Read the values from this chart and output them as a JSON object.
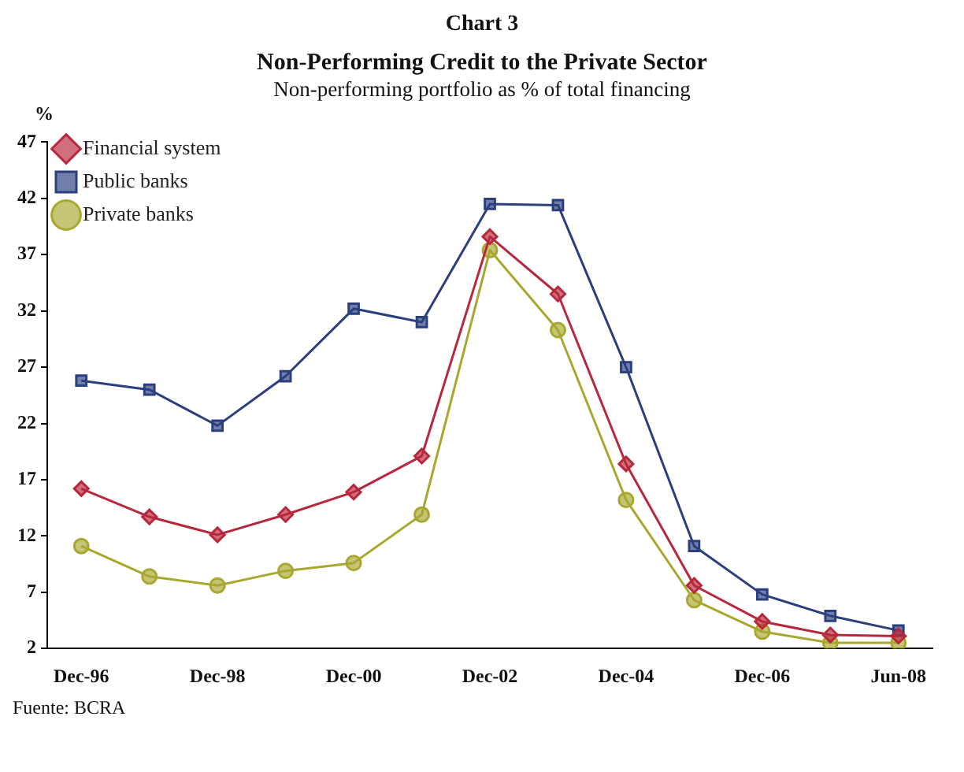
{
  "chart_data": {
    "type": "line",
    "title": "Non-Performing Credit to the Private Sector",
    "subtitle": "Non-performing portfolio as % of total financing",
    "ylabel": "%",
    "annotations": [
      "Chart 3",
      "Fuente: BCRA"
    ],
    "categories": [
      "Dec-96",
      null,
      "Dec-98",
      null,
      "Dec-00",
      null,
      "Dec-02",
      null,
      "Dec-04",
      null,
      "Dec-06",
      null,
      "Jun-08"
    ],
    "series": [
      {
        "name": "Financial system",
        "color": "#b8283c",
        "marker": "diamond",
        "values": [
          16.2,
          13.7,
          12.1,
          13.9,
          15.9,
          19.1,
          38.6,
          33.5,
          18.4,
          7.6,
          4.4,
          3.2,
          3.1
        ]
      },
      {
        "name": "Public banks",
        "color": "#2b3f7f",
        "marker": "square",
        "values": [
          25.8,
          25.0,
          21.8,
          26.2,
          32.2,
          31.0,
          41.5,
          41.4,
          27.0,
          11.1,
          6.8,
          4.9,
          3.6
        ]
      },
      {
        "name": "Private banks",
        "color": "#a8a830",
        "marker": "circle",
        "values": [
          11.1,
          8.4,
          7.6,
          8.9,
          9.6,
          13.9,
          37.4,
          30.3,
          15.2,
          6.3,
          3.5,
          2.5,
          2.5
        ]
      }
    ],
    "ylim": [
      2,
      47
    ],
    "yticks": [
      2,
      7,
      12,
      17,
      22,
      27,
      32,
      37,
      42,
      47
    ],
    "grid": false,
    "legend": "top left"
  }
}
